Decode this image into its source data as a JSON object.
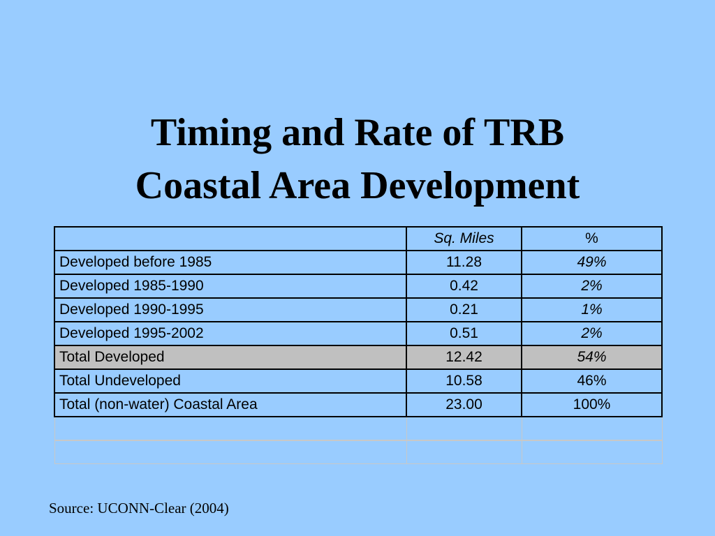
{
  "title": {
    "line1": "Timing and Rate of TRB",
    "line2": "Coastal Area Development"
  },
  "table": {
    "headers": [
      "",
      "Sq. Miles",
      "%"
    ],
    "rows": [
      {
        "label": "Developed before 1985",
        "sq_miles": "11.28",
        "percent": "49%"
      },
      {
        "label": "Developed 1985-1990",
        "sq_miles": "0.42",
        "percent": "2%"
      },
      {
        "label": "Developed 1990-1995",
        "sq_miles": "0.21",
        "percent": "1%"
      },
      {
        "label": "Developed 1995-2002",
        "sq_miles": "0.51",
        "percent": "2%"
      },
      {
        "label": "Total Developed",
        "sq_miles": "12.42",
        "percent": "54%"
      },
      {
        "label": "Total Undeveloped",
        "sq_miles": "10.58",
        "percent": "46%"
      },
      {
        "label": "Total (non-water) Coastal Area",
        "sq_miles": "23.00",
        "percent": "100%"
      }
    ]
  },
  "source": "Source: UCONN-Clear (2004)",
  "colors": {
    "background": "#99ccff",
    "highlight_row": "#c0c0c0"
  }
}
